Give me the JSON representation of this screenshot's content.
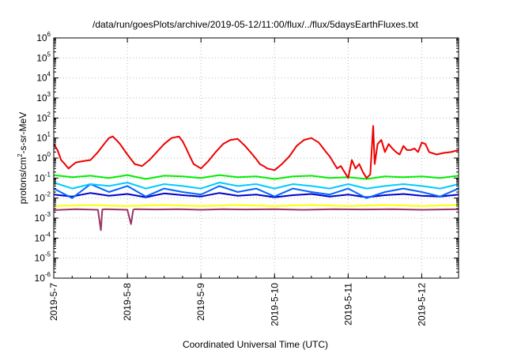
{
  "chart_data": {
    "type": "line",
    "title": "/data/run/goesPlots/archive/2019-05-12/11:00/flux/../flux/5daysEarthFluxes.txt",
    "xlabel": "Coordinated Universal Time (UTC)",
    "ylabel": {
      "base": "protons/cm",
      "sup": "2",
      "rest": "-s-sr-MeV"
    },
    "y_scale": "log",
    "ylim": [
      1e-06,
      1000000.0
    ],
    "xlim": [
      "2019-05-07 00:00",
      "2019-05-12 12:00"
    ],
    "y_ticks": [
      {
        "value": 1e-06,
        "base": "10",
        "exp": "-6"
      },
      {
        "value": 1e-05,
        "base": "10",
        "exp": "-5"
      },
      {
        "value": 0.0001,
        "base": "10",
        "exp": "-4"
      },
      {
        "value": 0.001,
        "base": "10",
        "exp": "-3"
      },
      {
        "value": 0.01,
        "base": "10",
        "exp": "-2"
      },
      {
        "value": 0.1,
        "base": "10",
        "exp": "-1"
      },
      {
        "value": 1,
        "base": "10",
        "exp": "0"
      },
      {
        "value": 10,
        "base": "10",
        "exp": "1"
      },
      {
        "value": 100,
        "base": "10",
        "exp": "2"
      },
      {
        "value": 1000,
        "base": "10",
        "exp": "3"
      },
      {
        "value": 10000,
        "base": "10",
        "exp": "4"
      },
      {
        "value": 100000,
        "base": "10",
        "exp": "5"
      },
      {
        "value": 1000000,
        "base": "10",
        "exp": "6"
      }
    ],
    "x_ticks": [
      {
        "label": "2019-5-7",
        "day": 0
      },
      {
        "label": "2019-5-8",
        "day": 1
      },
      {
        "label": "2019-5-9",
        "day": 2
      },
      {
        "label": "2019-5-10",
        "day": 3
      },
      {
        "label": "2019-5-11",
        "day": 4
      },
      {
        "label": "2019-5-12",
        "day": 5
      }
    ],
    "grid": true,
    "legend": "none",
    "series": [
      {
        "color": "#ee0000",
        "width": 2,
        "x": [
          0.0,
          0.05,
          0.1,
          0.15,
          0.2,
          0.3,
          0.4,
          0.5,
          0.6,
          0.7,
          0.75,
          0.8,
          0.85,
          0.9,
          1.0,
          1.1,
          1.2,
          1.3,
          1.4,
          1.5,
          1.6,
          1.7,
          1.75,
          1.8,
          1.85,
          1.9,
          2.0,
          2.1,
          2.2,
          2.3,
          2.4,
          2.5,
          2.6,
          2.7,
          2.75,
          2.8,
          2.85,
          2.9,
          3.0,
          3.1,
          3.2,
          3.3,
          3.4,
          3.5,
          3.6,
          3.7,
          3.75,
          3.8,
          3.85,
          3.9,
          3.95,
          4.0,
          4.05,
          4.1,
          4.15,
          4.2,
          4.25,
          4.3,
          4.34,
          4.36,
          4.4,
          4.45,
          4.5,
          4.55,
          4.6,
          4.65,
          4.7,
          4.75,
          4.8,
          4.85,
          4.9,
          4.95,
          5.0,
          5.05,
          5.1,
          5.2,
          5.3,
          5.4,
          5.5
        ],
        "y": [
          5,
          2.5,
          0.8,
          0.5,
          0.3,
          0.6,
          0.7,
          0.8,
          2,
          6,
          10,
          12,
          8,
          5,
          1.5,
          0.5,
          0.4,
          0.8,
          2,
          5,
          10,
          12,
          7,
          3,
          1.2,
          0.5,
          0.3,
          0.7,
          2,
          5,
          8,
          9,
          4,
          1.5,
          0.9,
          0.5,
          0.4,
          0.3,
          0.25,
          0.5,
          1.2,
          4,
          8,
          10,
          6,
          2,
          1.2,
          0.6,
          0.3,
          0.4,
          0.2,
          0.1,
          0.8,
          0.3,
          0.5,
          0.2,
          0.1,
          0.15,
          40,
          0.5,
          5,
          8,
          2,
          5,
          3,
          2,
          1.5,
          4,
          2.5,
          2.5,
          3,
          2,
          6,
          5,
          2,
          1.5,
          1.8,
          2,
          2.5
        ]
      },
      {
        "color": "#00ee00",
        "width": 2,
        "x": [
          0.0,
          0.25,
          0.5,
          0.75,
          1.0,
          1.25,
          1.5,
          1.75,
          2.0,
          2.25,
          2.5,
          2.75,
          3.0,
          3.25,
          3.5,
          3.75,
          4.0,
          4.25,
          4.5,
          4.75,
          5.0,
          5.25,
          5.5
        ],
        "y": [
          0.14,
          0.11,
          0.13,
          0.1,
          0.14,
          0.09,
          0.13,
          0.12,
          0.1,
          0.14,
          0.11,
          0.12,
          0.09,
          0.12,
          0.13,
          0.1,
          0.11,
          0.09,
          0.12,
          0.11,
          0.12,
          0.1,
          0.13
        ]
      },
      {
        "color": "#00ccff",
        "width": 2,
        "x": [
          0.0,
          0.25,
          0.5,
          0.75,
          1.0,
          1.25,
          1.5,
          1.75,
          2.0,
          2.25,
          2.5,
          2.75,
          3.0,
          3.25,
          3.5,
          3.75,
          4.0,
          4.25,
          4.5,
          4.75,
          5.0,
          5.25,
          5.5
        ],
        "y": [
          0.06,
          0.03,
          0.05,
          0.04,
          0.06,
          0.03,
          0.05,
          0.04,
          0.03,
          0.06,
          0.04,
          0.05,
          0.03,
          0.05,
          0.04,
          0.03,
          0.05,
          0.03,
          0.04,
          0.05,
          0.04,
          0.03,
          0.05
        ]
      },
      {
        "color": "#0066ff",
        "width": 2,
        "x": [
          0.0,
          0.25,
          0.5,
          0.75,
          1.0,
          1.25,
          1.5,
          1.75,
          2.0,
          2.25,
          2.5,
          2.75,
          3.0,
          3.25,
          3.5,
          3.75,
          4.0,
          4.25,
          4.5,
          4.75,
          5.0,
          5.25,
          5.5
        ],
        "y": [
          0.03,
          0.01,
          0.05,
          0.02,
          0.04,
          0.012,
          0.03,
          0.02,
          0.015,
          0.04,
          0.02,
          0.03,
          0.012,
          0.03,
          0.02,
          0.015,
          0.03,
          0.01,
          0.02,
          0.03,
          0.02,
          0.012,
          0.03
        ]
      },
      {
        "color": "#0000cc",
        "width": 2,
        "x": [
          0.0,
          0.25,
          0.5,
          0.75,
          1.0,
          1.25,
          1.5,
          1.75,
          2.0,
          2.25,
          2.5,
          2.75,
          3.0,
          3.25,
          3.5,
          3.75,
          4.0,
          4.25,
          4.5,
          4.75,
          5.0,
          5.25,
          5.5
        ],
        "y": [
          0.015,
          0.012,
          0.018,
          0.013,
          0.016,
          0.011,
          0.017,
          0.014,
          0.012,
          0.018,
          0.013,
          0.015,
          0.011,
          0.014,
          0.016,
          0.012,
          0.015,
          0.011,
          0.014,
          0.016,
          0.013,
          0.012,
          0.015
        ]
      },
      {
        "color": "#ffff00",
        "width": 2,
        "x": [
          0.0,
          0.5,
          1.0,
          1.5,
          2.0,
          2.5,
          3.0,
          3.5,
          4.0,
          4.5,
          5.0,
          5.5
        ],
        "y": [
          0.004,
          0.0045,
          0.004,
          0.0045,
          0.004,
          0.0045,
          0.004,
          0.0045,
          0.004,
          0.0045,
          0.004,
          0.0045
        ]
      },
      {
        "color": "#993366",
        "width": 2,
        "x": [
          0.0,
          0.3,
          0.6,
          0.64,
          0.66,
          0.7,
          1.0,
          1.05,
          1.08,
          1.1,
          1.4,
          1.7,
          2.0,
          2.3,
          2.6,
          3.0,
          3.4,
          3.8,
          4.2,
          4.6,
          5.0,
          5.5
        ],
        "y": [
          0.0025,
          0.0028,
          0.0026,
          0.00025,
          0.0027,
          0.0028,
          0.0026,
          0.0005,
          0.0026,
          0.0028,
          0.0027,
          0.0028,
          0.0026,
          0.0028,
          0.0027,
          0.0028,
          0.0026,
          0.0028,
          0.0027,
          0.0028,
          0.0026,
          0.0028
        ]
      }
    ]
  }
}
